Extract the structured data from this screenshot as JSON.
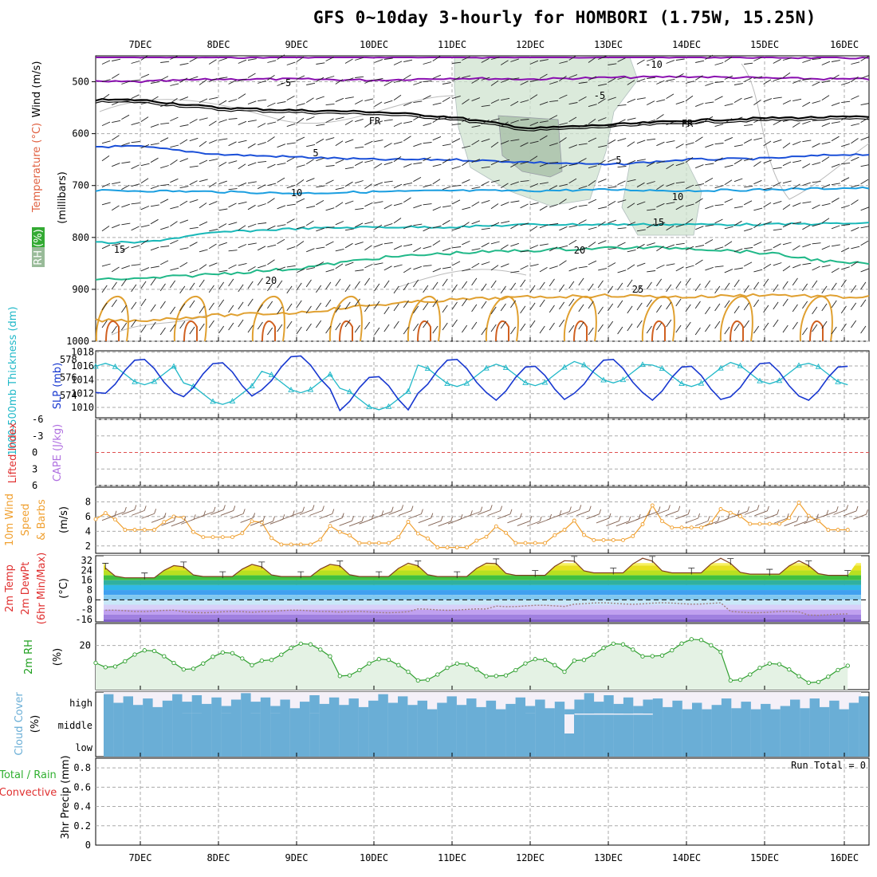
{
  "title": "GFS 0~10day 3-hourly for HOMBORI (1.75W, 15.25N)",
  "dates": [
    "7DEC",
    "8DEC",
    "9DEC",
    "10DEC",
    "11DEC",
    "12DEC",
    "13DEC",
    "14DEC",
    "15DEC",
    "16DEC"
  ],
  "panels": {
    "upper": {
      "ylabel_parts": [
        {
          "text": "Wind (m/s)",
          "color": "#000000"
        },
        {
          "text": "Temperature (°C)",
          "color": "#e06040"
        },
        {
          "text": "(millibars)",
          "color": "#000000"
        }
      ],
      "rh_label": "RH (%)",
      "yticks": [
        "500",
        "600",
        "700",
        "800",
        "900",
        "1000"
      ],
      "isotherm_labels": [
        "-10",
        "-5",
        "-5",
        "FR",
        "FR",
        "5",
        "5",
        "10",
        "10",
        "15",
        "15",
        "20",
        "20",
        "25"
      ]
    },
    "slp": {
      "ylabel_left": "1000-500mb Thickness (dm)",
      "ylabel_right": "SLP (mb)",
      "left_ticks": [
        "578",
        "576",
        "574"
      ],
      "right_ticks": [
        "1018",
        "1016",
        "1014",
        "1012",
        "1010"
      ]
    },
    "cape": {
      "ylabel_left": "Lifted Index",
      "ylabel_right": "CAPE (J/kg)",
      "ticks": [
        "-6",
        "-3",
        "0",
        "3",
        "6"
      ]
    },
    "wind10": {
      "ylabel": [
        "10m Wind",
        "Speed",
        "& Barbs"
      ],
      "unit": "(m/s)",
      "ticks": [
        "8",
        "6",
        "4",
        "2"
      ]
    },
    "temp2m": {
      "ylabel": [
        "2m Temp",
        "2m DewPt",
        "(6hr Min/Max)"
      ],
      "unit": "(°C)",
      "ticks": [
        "32",
        "24",
        "16",
        "8",
        "0",
        "-8",
        "-16"
      ]
    },
    "rh2m": {
      "ylabel": "2m RH",
      "unit": "(%)",
      "ticks": [
        "20"
      ]
    },
    "cloud": {
      "ylabel": "Cloud Cover",
      "unit": "(%)",
      "levels": [
        "high",
        "middle",
        "low"
      ]
    },
    "precip": {
      "ylabel_parts": [
        {
          "text": "Total / Rain",
          "color": "#30b030"
        },
        {
          "text": "Convective",
          "color": "#e03030"
        }
      ],
      "ylabel_right": "3hr Precip (mm)",
      "ticks": [
        "0.8",
        "0.6",
        "0.4",
        "0.2",
        "0"
      ],
      "run_total": "Run Total = 0"
    }
  },
  "chart_data": [
    {
      "type": "line",
      "name": "upper-air cross section",
      "x": [
        "7DEC",
        "8DEC",
        "9DEC",
        "10DEC",
        "11DEC",
        "12DEC",
        "13DEC",
        "14DEC",
        "15DEC",
        "16DEC"
      ],
      "ylim": [
        1000,
        450
      ],
      "series": [
        {
          "name": "-10",
          "values": [
            452,
            453,
            452,
            452,
            453,
            452,
            452,
            452,
            453,
            454
          ]
        },
        {
          "name": "-5",
          "values": [
            500,
            495,
            495,
            497,
            493,
            495,
            492,
            490,
            493,
            495
          ]
        },
        {
          "name": "FR",
          "values": [
            535,
            550,
            555,
            558,
            568,
            590,
            583,
            575,
            570,
            568
          ]
        },
        {
          "name": "5",
          "values": [
            625,
            640,
            645,
            650,
            650,
            655,
            660,
            650,
            648,
            640
          ]
        },
        {
          "name": "10",
          "values": [
            710,
            712,
            715,
            712,
            710,
            710,
            708,
            710,
            708,
            705
          ]
        },
        {
          "name": "15",
          "values": [
            810,
            790,
            783,
            780,
            780,
            775,
            775,
            775,
            775,
            773
          ]
        },
        {
          "name": "20",
          "values": [
            880,
            870,
            860,
            840,
            830,
            825,
            820,
            820,
            830,
            850
          ]
        },
        {
          "name": "25",
          "values": [
            960,
            950,
            945,
            930,
            920,
            915,
            912,
            915,
            910,
            915
          ]
        }
      ]
    },
    {
      "type": "line",
      "name": "thickness and SLP",
      "x": [
        "7DEC",
        "8DEC",
        "9DEC",
        "10DEC",
        "11DEC",
        "12DEC",
        "13DEC",
        "14DEC",
        "15DEC",
        "16DEC"
      ],
      "series": [
        {
          "name": "1000-500mb Thickness (dm)",
          "values": [
            576.4,
            574.2,
            575.5,
            573.6,
            576.2,
            576.3,
            576.6,
            576.2,
            576.5,
            576.4
          ]
        },
        {
          "name": "SLP (mb)",
          "values": [
            1016,
            1015.5,
            1016.5,
            1013.5,
            1016,
            1015,
            1016,
            1015,
            1015.5,
            1015
          ]
        }
      ]
    },
    {
      "type": "line",
      "name": "10m wind speed",
      "x": [
        "7DEC",
        "8DEC",
        "9DEC",
        "10DEC",
        "11DEC",
        "12DEC",
        "13DEC",
        "14DEC",
        "15DEC",
        "16DEC"
      ],
      "ylim": [
        1,
        10
      ],
      "series": [
        {
          "name": "10m Wind Speed",
          "values": [
            4.2,
            3.2,
            2.2,
            2.4,
            1.8,
            2.4,
            2.8,
            4.5,
            5.0,
            4.2
          ]
        }
      ]
    },
    {
      "type": "area",
      "name": "2m temperature and dewpoint",
      "x": [
        "7DEC",
        "8DEC",
        "9DEC",
        "10DEC",
        "11DEC",
        "12DEC",
        "13DEC",
        "14DEC",
        "15DEC",
        "16DEC"
      ],
      "ylim": [
        -18,
        36
      ],
      "series": [
        {
          "name": "2m Temp max",
          "values": [
            28,
            29,
            29,
            30,
            30,
            32,
            34,
            34,
            32,
            30
          ]
        },
        {
          "name": "2m Temp min",
          "values": [
            18,
            19,
            19,
            19,
            19,
            20,
            22,
            22,
            21,
            20
          ]
        },
        {
          "name": "2m DewPt",
          "values": [
            -9,
            -10,
            -9,
            -10,
            -8,
            -5,
            -3,
            -3,
            -10,
            -12
          ]
        }
      ]
    },
    {
      "type": "area",
      "name": "2m RH",
      "x": [
        "7DEC",
        "8DEC",
        "9DEC",
        "10DEC",
        "11DEC",
        "12DEC",
        "13DEC",
        "14DEC",
        "15DEC",
        "16DEC"
      ],
      "ylim": [
        0,
        30
      ],
      "series": [
        {
          "name": "2m RH",
          "values": [
            14,
            13,
            17,
            10,
            8,
            10,
            17,
            19,
            8,
            7
          ]
        }
      ]
    },
    {
      "type": "bar",
      "name": "cloud cover",
      "x": [
        "7DEC",
        "8DEC",
        "9DEC",
        "10DEC",
        "11DEC",
        "12DEC",
        "13DEC",
        "14DEC",
        "15DEC",
        "16DEC"
      ],
      "series": [
        {
          "name": "high",
          "values": [
            90,
            95,
            85,
            90,
            80,
            75,
            95,
            70,
            65,
            80
          ]
        },
        {
          "name": "middle",
          "values": [
            100,
            100,
            100,
            100,
            100,
            100,
            95,
            100,
            100,
            100
          ]
        },
        {
          "name": "low",
          "values": [
            100,
            100,
            100,
            100,
            100,
            100,
            100,
            100,
            100,
            100
          ]
        }
      ]
    },
    {
      "type": "bar",
      "name": "3hr precip",
      "x": [
        "7DEC",
        "8DEC",
        "9DEC",
        "10DEC",
        "11DEC",
        "12DEC",
        "13DEC",
        "14DEC",
        "15DEC",
        "16DEC"
      ],
      "ylim": [
        0,
        0.9
      ],
      "series": [
        {
          "name": "3hr Precip",
          "values": [
            0,
            0,
            0,
            0,
            0,
            0,
            0,
            0,
            0,
            0
          ]
        }
      ]
    }
  ],
  "colors": {
    "thickness": "#20b8c8",
    "slp": "#1838d0",
    "wind": "#f0a030",
    "barb": "#806050",
    "rh": "#20a020",
    "cloud": "#6aaed6",
    "dewpoint": "#a070d0",
    "purple": "#8a10b0",
    "fr": "#000000",
    "blue5": "#1a4fd8",
    "blue10": "#1a9ee0",
    "teal15": "#18b8b8",
    "green20": "#20b888",
    "orange25": "#e0a030"
  }
}
